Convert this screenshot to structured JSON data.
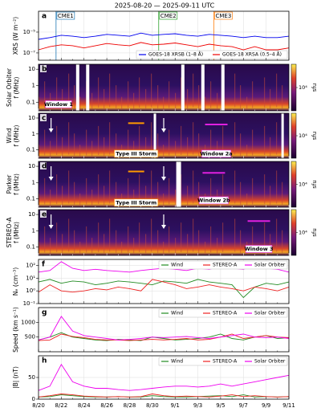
{
  "title": "2025-08-20 — 2025-09-11  UTC",
  "xaxis": {
    "categories": [
      "8/20",
      null,
      "8/22",
      null,
      "8/24",
      null,
      "8/26",
      null,
      "8/28",
      null,
      "8/30",
      null,
      "9/1",
      null,
      "9/3",
      null,
      "9/5",
      null,
      "9/7",
      null,
      "9/9",
      null,
      "9/11"
    ]
  },
  "chart_data": [
    {
      "type": "line",
      "panel": "a",
      "ylabel": [
        "XRS (W m⁻²)"
      ],
      "ylog": true,
      "ylim": [
        2e-08,
        0.001
      ],
      "yticks": [
        {
          "value": 1e-07,
          "label": "10⁻⁷"
        },
        {
          "value": 1e-05,
          "label": "10⁻⁵"
        }
      ],
      "legend": "lower right",
      "legend_columns": 2,
      "annotations": [
        {
          "text": "CME1",
          "color": "#1f77b4"
        },
        {
          "text": "CME2",
          "color": "#2ca02c"
        },
        {
          "text": "CME3",
          "color": "#ff7f0e"
        }
      ],
      "series": [
        {
          "name": "GOES-18 XRSB (1–8 Å)",
          "color": "#0000ee",
          "values": [
            2e-06,
            3e-06,
            5e-06,
            4e-06,
            3e-06,
            4e-06,
            6e-06,
            5e-06,
            4e-06,
            8e-06,
            5e-06,
            6e-06,
            7e-06,
            5e-06,
            4e-06,
            6e-06,
            5e-06,
            4e-06,
            3e-06,
            4e-06,
            3e-06,
            3e-06,
            4e-06
          ]
        },
        {
          "name": "GOES-18 XRSA (0.5–4 Å)",
          "color": "#ee0000",
          "values": [
            2e-07,
            4e-07,
            6e-07,
            5e-07,
            3e-07,
            5e-07,
            8e-07,
            6e-07,
            5e-07,
            1e-06,
            6e-07,
            7e-07,
            9e-07,
            6e-07,
            4e-07,
            7e-07,
            5e-07,
            4e-07,
            2e-07,
            4e-07,
            2e-07,
            2e-07,
            3e-07
          ]
        }
      ]
    },
    {
      "type": "spectrogram",
      "panel": "b",
      "ylabel": [
        "Solar Orbiter",
        "f (MHz)"
      ],
      "ylog": true,
      "ylim": [
        0.03,
        20
      ],
      "yticks": [
        10,
        1,
        0.1
      ],
      "colorbar_label": "sfu",
      "clim": [
        1000,
        100000
      ],
      "cticks": [
        {
          "value": 10000,
          "label": "10⁴"
        }
      ],
      "annotations": [
        {
          "text": "Window 1",
          "color": "#e020e0"
        }
      ]
    },
    {
      "type": "spectrogram",
      "panel": "c",
      "ylabel": [
        "Wind",
        "f (MHz)"
      ],
      "ylog": true,
      "ylim": [
        0.03,
        20
      ],
      "yticks": [
        10,
        1,
        0.1
      ],
      "colorbar_label": "sfu",
      "clim": [
        1000,
        100000
      ],
      "cticks": [
        {
          "value": 10000,
          "label": "10⁴"
        }
      ],
      "annotations": [
        {
          "text": "Type III Storm",
          "color": "#ff9900"
        },
        {
          "text": "Window 2a",
          "color": "#e020e0"
        }
      ]
    },
    {
      "type": "spectrogram",
      "panel": "d",
      "ylabel": [
        "Parker",
        "f (MHz)"
      ],
      "ylog": true,
      "ylim": [
        0.03,
        20
      ],
      "yticks": [
        10,
        1,
        0.1
      ],
      "colorbar_label": "sfu",
      "clim": [
        1000,
        100000
      ],
      "cticks": [
        {
          "value": 10000,
          "label": "10⁴"
        }
      ],
      "annotations": [
        {
          "text": "Type III Storm",
          "color": "#ff9900"
        },
        {
          "text": "Window 2b",
          "color": "#e020e0"
        }
      ]
    },
    {
      "type": "spectrogram",
      "panel": "e",
      "ylabel": [
        "STEREO-A",
        "f (MHz)"
      ],
      "ylog": true,
      "ylim": [
        0.03,
        20
      ],
      "yticks": [
        10,
        1,
        0.1
      ],
      "colorbar_label": "sfu",
      "clim": [
        1000,
        100000
      ],
      "cticks": [
        {
          "value": 10000,
          "label": "10⁴"
        }
      ],
      "annotations": [
        {
          "text": "Window 3",
          "color": "#e020e0"
        }
      ]
    },
    {
      "type": "line",
      "panel": "f",
      "ylabel": [
        "Nₑ (cm⁻³)"
      ],
      "ylog": true,
      "ylim": [
        0.1,
        300
      ],
      "yticks": [
        {
          "value": 0.1,
          "label": "10⁻¹"
        },
        {
          "value": 1,
          "label": "10⁰"
        },
        {
          "value": 10,
          "label": "10¹"
        },
        {
          "value": 100,
          "label": "10²"
        }
      ],
      "legend": "upper right",
      "legend_columns": 3,
      "series": [
        {
          "name": "Wind",
          "color": "#228b22",
          "values": [
            5,
            8,
            4,
            6,
            5,
            3,
            4,
            6,
            5,
            4,
            3,
            6,
            5,
            4,
            8,
            5,
            4,
            3,
            0.3,
            2,
            4,
            3,
            5
          ]
        },
        {
          "name": "STEREO-A",
          "color": "#ee2222",
          "values": [
            0.8,
            3,
            1,
            0.8,
            1,
            1.5,
            1.2,
            2,
            1.5,
            1,
            8,
            5,
            3,
            1.5,
            2,
            3,
            2,
            1.5,
            1,
            2,
            1.5,
            1,
            2
          ]
        },
        {
          "name": "Solar Orbiter",
          "color": "#ee00ee",
          "values": [
            30,
            40,
            200,
            60,
            40,
            50,
            40,
            35,
            30,
            40,
            50,
            60,
            50,
            40,
            60,
            50,
            80,
            60,
            50,
            100,
            60,
            50,
            30
          ]
        }
      ]
    },
    {
      "type": "line",
      "panel": "g",
      "ylabel": [
        "Speed (km s⁻¹)"
      ],
      "ylog": false,
      "ylim": [
        0,
        1500
      ],
      "yticks": [
        500,
        1000
      ],
      "legend": "upper right",
      "legend_columns": 3,
      "series": [
        {
          "name": "Wind",
          "color": "#228b22",
          "values": [
            400,
            500,
            650,
            500,
            450,
            400,
            380,
            420,
            400,
            380,
            500,
            450,
            400,
            420,
            450,
            500,
            600,
            450,
            400,
            500,
            550,
            450,
            480
          ]
        },
        {
          "name": "STEREO-A",
          "color": "#ee2222",
          "values": [
            380,
            400,
            600,
            520,
            480,
            420,
            400,
            400,
            380,
            400,
            420,
            400,
            420,
            450,
            400,
            420,
            500,
            600,
            450,
            500,
            550,
            500,
            480
          ]
        },
        {
          "name": "Solar Orbiter",
          "color": "#ee00ee",
          "values": [
            400,
            500,
            1200,
            700,
            550,
            500,
            450,
            400,
            420,
            450,
            500,
            480,
            500,
            520,
            480,
            450,
            500,
            550,
            600,
            500,
            480,
            500,
            450
          ]
        }
      ]
    },
    {
      "type": "line",
      "panel": "h",
      "ylabel": [
        "|B| (nT)"
      ],
      "ylog": false,
      "ylim": [
        0,
        100
      ],
      "yticks": [
        0,
        50
      ],
      "legend": "upper right",
      "legend_columns": 3,
      "series": [
        {
          "name": "Wind",
          "color": "#228b22",
          "values": [
            5,
            6,
            10,
            8,
            6,
            5,
            5,
            6,
            5,
            5,
            8,
            6,
            5,
            5,
            6,
            7,
            8,
            6,
            10,
            5,
            6,
            5,
            6
          ]
        },
        {
          "name": "STEREO-A",
          "color": "#ee2222",
          "values": [
            5,
            8,
            12,
            10,
            7,
            6,
            5,
            6,
            5,
            6,
            12,
            8,
            6,
            7,
            6,
            5,
            7,
            10,
            6,
            8,
            6,
            5,
            6
          ]
        },
        {
          "name": "Solar Orbiter",
          "color": "#ee00ee",
          "values": [
            20,
            30,
            80,
            40,
            30,
            25,
            25,
            22,
            20,
            22,
            25,
            28,
            30,
            30,
            28,
            30,
            35,
            30,
            35,
            40,
            45,
            50,
            55
          ]
        }
      ]
    }
  ]
}
